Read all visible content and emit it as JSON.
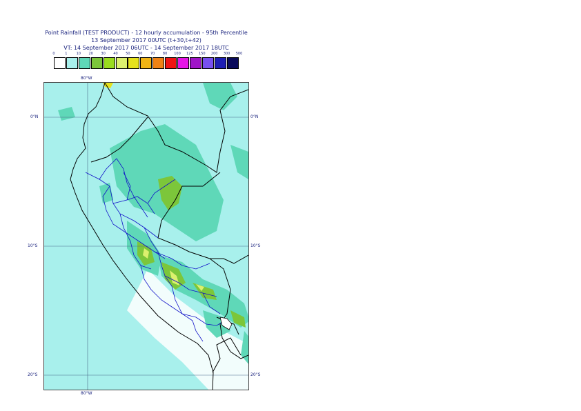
{
  "header": {
    "line1": "Point Rainfall (TEST PRODUCT) - 12 hourly accumulation - 95th Percentile",
    "line2": "13 September 2017 00UTC (t+30,t+42)",
    "line3": "VT: 14 September 2017 06UTC - 14 September 2017 18UTC"
  },
  "legend": {
    "labels": [
      "0",
      "1",
      "10",
      "20",
      "30",
      "40",
      "50",
      "60",
      "70",
      "80",
      "100",
      "125",
      "150",
      "200",
      "300",
      "500"
    ],
    "colors": [
      "#ffffff",
      "#a8f0ec",
      "#5fd8b8",
      "#7cc63a",
      "#9adc1e",
      "#dcf06e",
      "#e6e21c",
      "#f0b414",
      "#f08214",
      "#f01414",
      "#e614e6",
      "#a014c8",
      "#7850f0",
      "#1e1eb4",
      "#0a0a5a"
    ]
  },
  "map": {
    "lat_labels": [
      "0°N",
      "10°S",
      "20°S"
    ],
    "lon_label": "80°W",
    "colors": {
      "ocean_background": "#a8f0ec",
      "land_light": "#a8f0ec",
      "rain_10": "#5fd8b8",
      "rain_20": "#7cc63a",
      "rain_30": "#9adc1e",
      "rain_40": "#dcf06e",
      "country_border": "#000000",
      "region_border": "#1010c8",
      "gridline": "#4a6a8a"
    }
  }
}
